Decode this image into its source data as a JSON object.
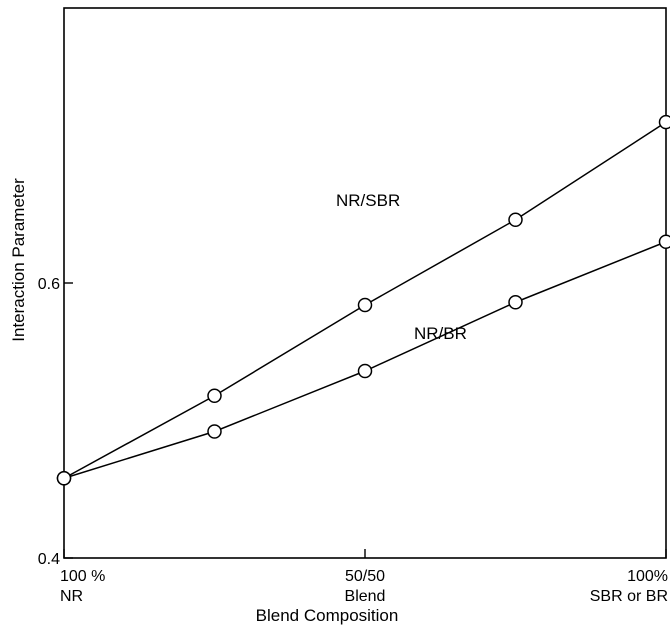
{
  "chart_data": {
    "type": "line",
    "xlabel": "Blend Composition",
    "ylabel": "Interaction Parameter",
    "x_ticks": [
      {
        "x": 0,
        "line1": "100 %",
        "line2": "NR"
      },
      {
        "x": 50,
        "line1": "50/50",
        "line2": "Blend"
      },
      {
        "x": 100,
        "line1": "100%",
        "line2": "SBR or BR"
      }
    ],
    "y_ticks": [
      {
        "y": 0.4,
        "label": "0.4"
      },
      {
        "y": 0.6,
        "label": "0.6"
      }
    ],
    "xlim": [
      0,
      100
    ],
    "ylim": [
      0.4,
      0.8
    ],
    "grid": false,
    "series": [
      {
        "name": "NR/SBR",
        "x": [
          0,
          25,
          50,
          75,
          100
        ],
        "y": [
          0.458,
          0.518,
          0.584,
          0.646,
          0.717
        ]
      },
      {
        "name": "NR/BR",
        "x": [
          0,
          25,
          50,
          75,
          100
        ],
        "y": [
          0.458,
          0.492,
          0.536,
          0.586,
          0.63
        ]
      }
    ]
  }
}
